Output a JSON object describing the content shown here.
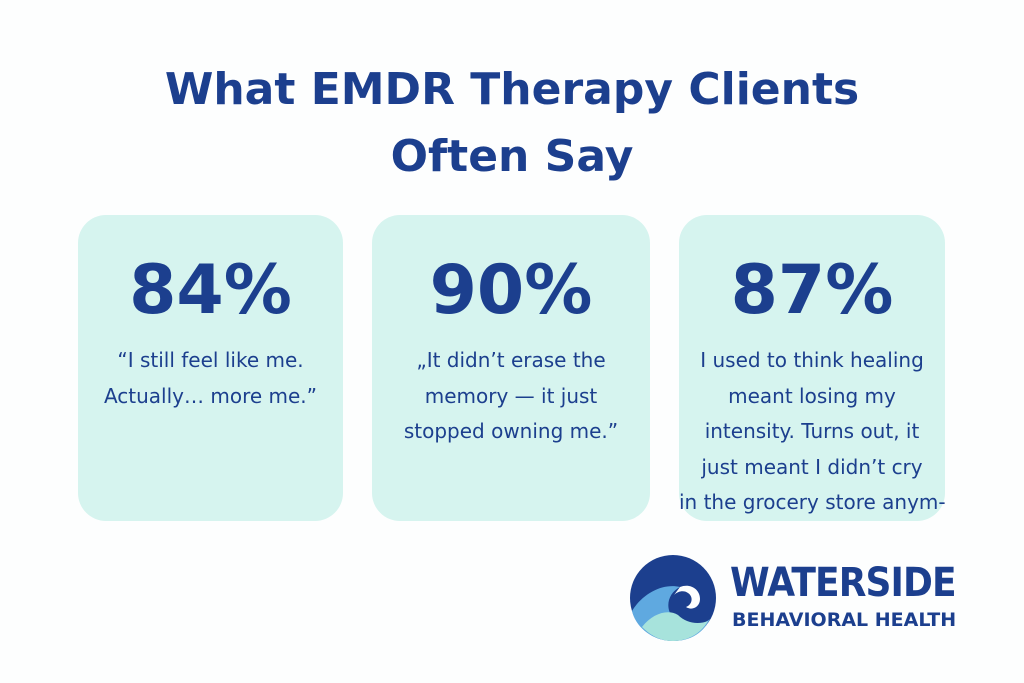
{
  "header": {
    "title": [
      "What EMDR Therapy Clients",
      "Often Say"
    ]
  },
  "cards": [
    {
      "stat": "84%",
      "quote": [
        "“I still feel like me.",
        "Actually… more me.”"
      ]
    },
    {
      "stat": "90%",
      "quote": [
        "„It didn’t erase the",
        "memory — it just",
        "stopped owning me.”"
      ]
    },
    {
      "stat": "87%",
      "quote": [
        "I used to think healing",
        "meant losing my",
        "intensity. Turns out, it",
        "just meant I didn’t cry",
        "in the grocery store anym-"
      ]
    }
  ],
  "logo": {
    "name": "WATERSIDE",
    "tagline": "BEHAVIORAL HEALTH"
  }
}
